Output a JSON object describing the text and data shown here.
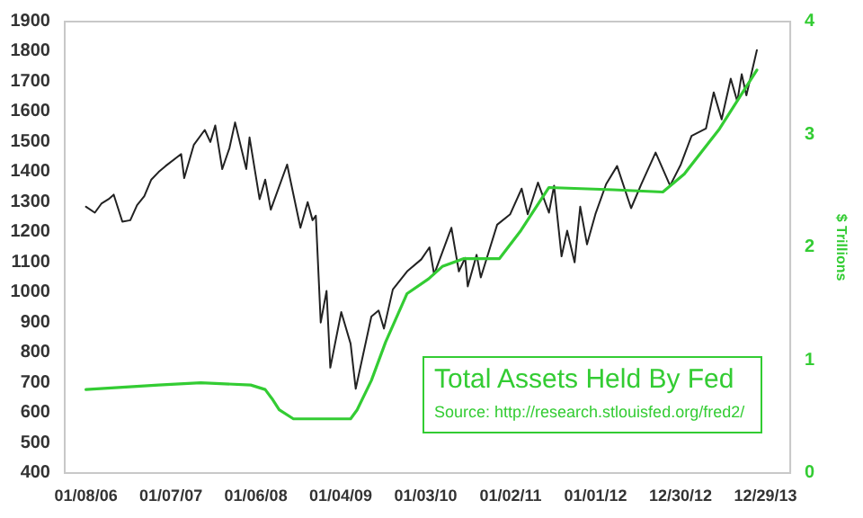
{
  "chart_data": {
    "type": "line",
    "y2label": "$ Trillions",
    "annotations": [
      "Source: http://research.stlouisfed.org/fred2/"
    ],
    "xlim": [
      "2005-10-09",
      "2014-04-14"
    ],
    "xticks": [
      {
        "value": "2006-01-08",
        "label": "01/08/06"
      },
      {
        "value": "2007-01-07",
        "label": "01/07/07"
      },
      {
        "value": "2008-01-06",
        "label": "01/06/08"
      },
      {
        "value": "2009-01-04",
        "label": "01/04/09"
      },
      {
        "value": "2010-01-03",
        "label": "01/03/10"
      },
      {
        "value": "2011-01-02",
        "label": "01/02/11"
      },
      {
        "value": "2012-01-01",
        "label": "01/01/12"
      },
      {
        "value": "2012-12-30",
        "label": "12/30/12"
      },
      {
        "value": "2013-12-29",
        "label": "12/29/13"
      }
    ],
    "ylim": [
      400,
      1900
    ],
    "yticks": [
      400,
      500,
      600,
      700,
      800,
      900,
      1000,
      1100,
      1200,
      1300,
      1400,
      1500,
      1600,
      1700,
      1800,
      1900
    ],
    "y2lim": [
      0,
      4
    ],
    "y2ticks": [
      0,
      1,
      2,
      3,
      4
    ],
    "grid": false,
    "legend": false,
    "marker": "none",
    "line_style": "solid",
    "series": [
      {
        "color": "#222222",
        "x": [
          "2006-01-08",
          "2006-02-15",
          "2006-03-15",
          "2006-04-15",
          "2006-05-07",
          "2006-06-13",
          "2006-07-17",
          "2006-08-15",
          "2006-09-15",
          "2006-10-15",
          "2006-11-15",
          "2006-12-15",
          "2007-02-20",
          "2007-03-05",
          "2007-04-15",
          "2007-06-01",
          "2007-06-25",
          "2007-07-16",
          "2007-08-15",
          "2007-09-15",
          "2007-10-09",
          "2007-11-26",
          "2007-12-10",
          "2008-01-22",
          "2008-02-15",
          "2008-03-10",
          "2008-05-19",
          "2008-07-15",
          "2008-08-15",
          "2008-09-05",
          "2008-09-19",
          "2008-10-10",
          "2008-11-04",
          "2008-11-20",
          "2009-01-06",
          "2009-02-15",
          "2009-03-09",
          "2009-05-15",
          "2009-06-15",
          "2009-07-08",
          "2009-08-15",
          "2009-10-15",
          "2009-12-15",
          "2010-01-19",
          "2010-02-08",
          "2010-04-23",
          "2010-05-25",
          "2010-06-21",
          "2010-07-02",
          "2010-08-09",
          "2010-08-27",
          "2010-11-05",
          "2010-12-31",
          "2011-02-18",
          "2011-03-16",
          "2011-04-29",
          "2011-06-15",
          "2011-07-07",
          "2011-08-08",
          "2011-09-01",
          "2011-10-03",
          "2011-10-27",
          "2011-11-25",
          "2011-12-31",
          "2012-02-15",
          "2012-04-02",
          "2012-06-01",
          "2012-07-15",
          "2012-09-14",
          "2012-11-15",
          "2012-12-31",
          "2013-02-15",
          "2013-04-18",
          "2013-05-21",
          "2013-06-24",
          "2013-08-02",
          "2013-08-30",
          "2013-09-18",
          "2013-10-08",
          "2013-11-22"
        ],
        "values": [
          1285,
          1265,
          1295,
          1310,
          1325,
          1235,
          1240,
          1290,
          1320,
          1375,
          1400,
          1420,
          1460,
          1380,
          1490,
          1540,
          1500,
          1555,
          1410,
          1480,
          1565,
          1410,
          1515,
          1310,
          1375,
          1275,
          1425,
          1215,
          1300,
          1240,
          1255,
          900,
          1005,
          750,
          935,
          830,
          680,
          920,
          940,
          880,
          1010,
          1070,
          1110,
          1150,
          1060,
          1215,
          1070,
          1115,
          1020,
          1125,
          1050,
          1225,
          1260,
          1345,
          1260,
          1365,
          1265,
          1355,
          1120,
          1205,
          1100,
          1285,
          1160,
          1260,
          1360,
          1420,
          1280,
          1360,
          1465,
          1355,
          1425,
          1520,
          1545,
          1665,
          1575,
          1710,
          1635,
          1725,
          1655,
          1805
        ]
      },
      {
        "name": "Total Assets Held By Fed",
        "color": "#33cc33",
        "axis": "y2",
        "x": [
          "2006-01-08",
          "2006-11-15",
          "2007-05-15",
          "2007-12-15",
          "2008-02-15",
          "2008-03-15",
          "2008-04-15",
          "2008-06-15",
          "2009-02-15",
          "2009-03-15",
          "2009-05-15",
          "2009-07-15",
          "2009-10-15",
          "2010-01-15",
          "2010-03-15",
          "2010-06-15",
          "2010-11-15",
          "2011-02-15",
          "2011-06-15",
          "2012-03-15",
          "2012-10-15",
          "2013-01-15",
          "2013-06-15",
          "2013-11-22"
        ],
        "values": [
          0.74,
          0.78,
          0.8,
          0.78,
          0.74,
          0.66,
          0.56,
          0.48,
          0.48,
          0.56,
          0.82,
          1.16,
          1.59,
          1.72,
          1.83,
          1.9,
          1.9,
          2.15,
          2.53,
          2.51,
          2.49,
          2.65,
          3.05,
          3.57
        ]
      }
    ]
  }
}
